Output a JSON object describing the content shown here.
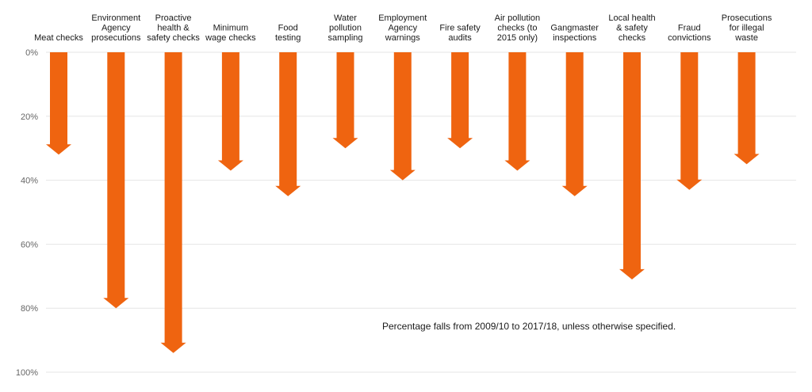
{
  "chart_data": {
    "type": "bar",
    "orientation": "vertical-arrows-downward",
    "categories": [
      [
        "Meat checks"
      ],
      [
        "Environment",
        "Agency",
        "prosecutions"
      ],
      [
        "Proactive",
        "health &",
        "safety checks"
      ],
      [
        "Minimum",
        "wage checks"
      ],
      [
        "Food",
        "testing"
      ],
      [
        "Water",
        "pollution",
        "sampling"
      ],
      [
        "Employment",
        "Agency",
        "warnings"
      ],
      [
        "Fire safety",
        "audits"
      ],
      [
        "Air pollution",
        "checks (to",
        "2015 only)"
      ],
      [
        "Gangmaster",
        "inspections"
      ],
      [
        "Local health",
        "& safety",
        "checks"
      ],
      [
        "Fraud",
        "convictions"
      ],
      [
        "Prosecutions",
        "for illegal",
        "waste"
      ]
    ],
    "values": [
      32,
      80,
      94,
      37,
      45,
      30,
      40,
      30,
      37,
      45,
      71,
      43,
      35
    ],
    "ylim": [
      0,
      100
    ],
    "yticks": [
      "0%",
      "20%",
      "40%",
      "60%",
      "80%",
      "100%"
    ],
    "ytick_values": [
      0,
      20,
      40,
      60,
      80,
      100
    ],
    "grid": true,
    "bar_color": "#ef6410",
    "annotation": "Percentage falls from 2009/10 to 2017/18, unless otherwise specified."
  }
}
